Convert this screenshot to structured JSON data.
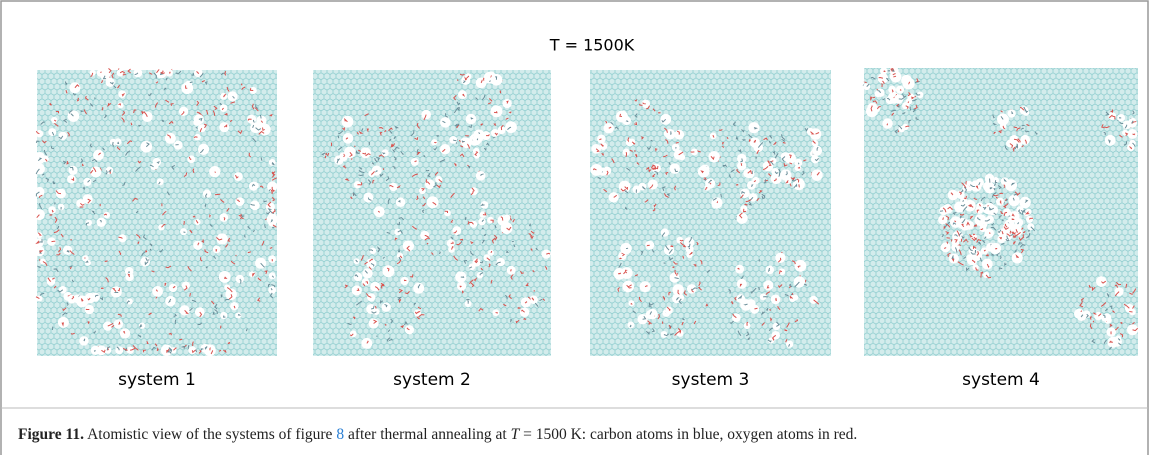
{
  "figure": {
    "panel_title": "T = 1500K",
    "panels": [
      {
        "label": "system 1"
      },
      {
        "label": "system 2"
      },
      {
        "label": "system 3"
      },
      {
        "label": "system 4"
      }
    ],
    "caption": {
      "number": "Figure 11.",
      "parts": [
        "Atomistic view of the systems of figure",
        "8",
        "after thermal annealing at",
        "T",
        "= 1500 K: carbon atoms in blue, oxygen atoms in red."
      ]
    }
  }
}
